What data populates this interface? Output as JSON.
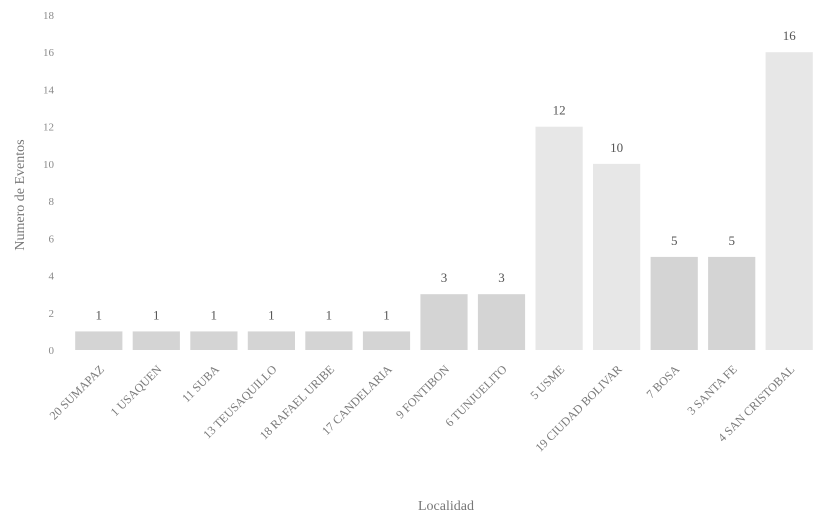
{
  "chart_data": {
    "type": "bar",
    "xlabel": "Localidad",
    "ylabel": "Numero de Eventos",
    "ylim": [
      0,
      18
    ],
    "yticks": [
      "0",
      "2",
      "4",
      "6",
      "8",
      "10",
      "12",
      "14",
      "16",
      "18"
    ],
    "grid": false,
    "categories": [
      "20 SUMAPAZ",
      "1 USAQUEN",
      "11 SUBA",
      "13 TEUSAQUILLO",
      "18 RAFAEL URIBE",
      "17 CANDELARIA",
      "9 FONTIBON",
      "6 TUNJUELITO",
      "5 USME",
      "19 CIUDAD BOLIVAR",
      "7 BOSA",
      "3 SANTA FE",
      "4 SAN CRISTOBAL"
    ],
    "values": [
      1,
      1,
      1,
      1,
      1,
      1,
      3,
      3,
      12,
      10,
      5,
      5,
      16
    ],
    "data_labels": [
      "1",
      "1",
      "1",
      "1",
      "1",
      "1",
      "3",
      "3",
      "12",
      "10",
      "5",
      "5",
      "16"
    ],
    "colors": {
      "low": "#d4d4d4",
      "high": "#e7e7e7",
      "text": "#777777"
    }
  }
}
